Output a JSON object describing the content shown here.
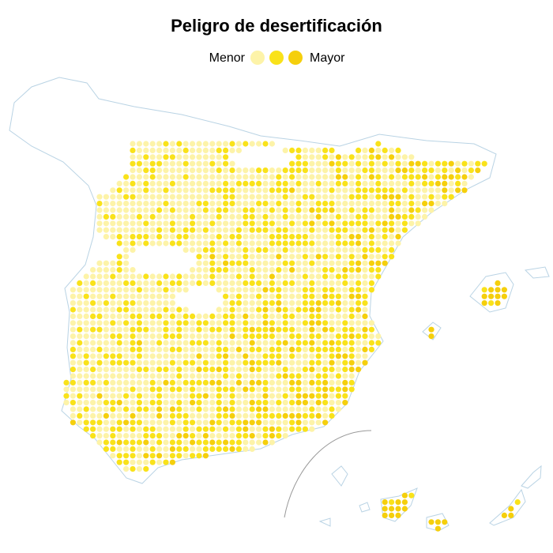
{
  "title": "Peligro de desertificación",
  "legend": {
    "low_label": "Menor",
    "high_label": "Mayor",
    "colors": [
      "#fdf3a8",
      "#f9e21a",
      "#f5cf0c"
    ]
  }
}
